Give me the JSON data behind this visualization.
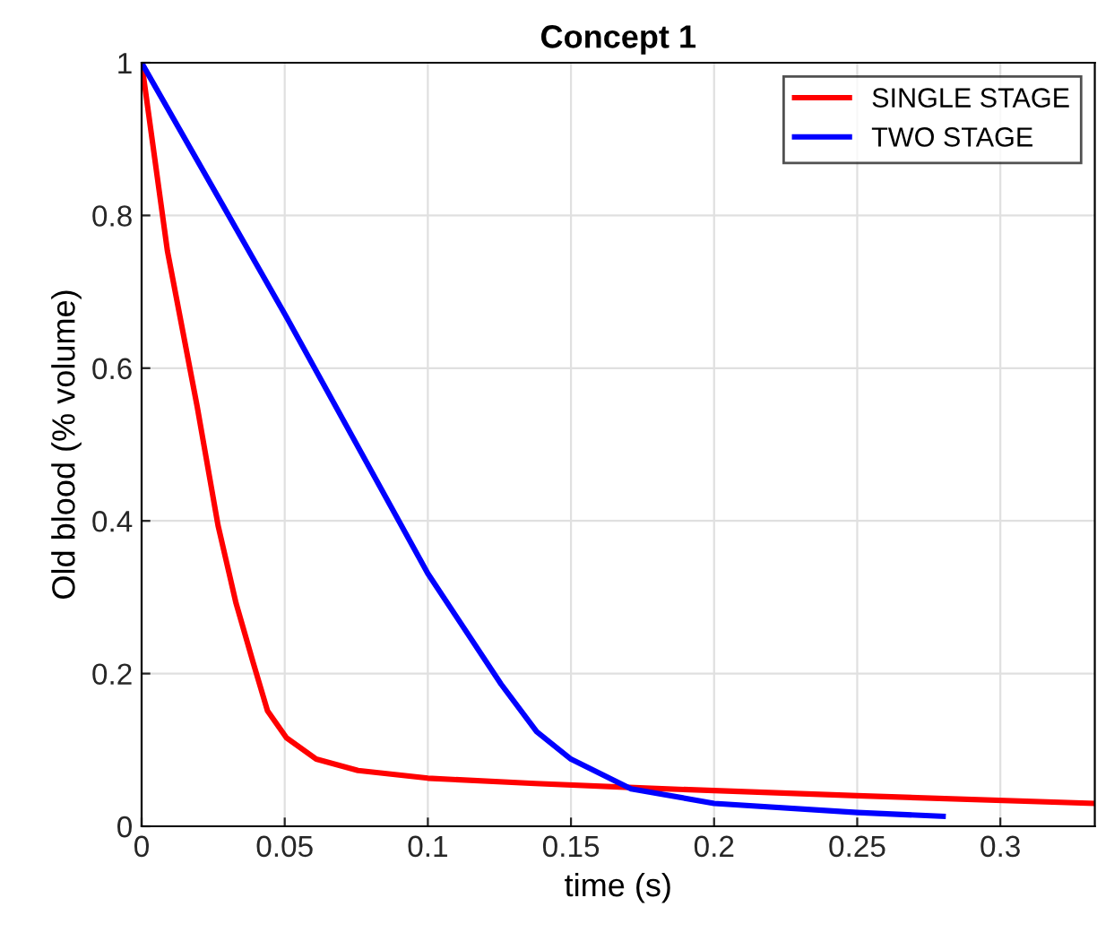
{
  "chart_data": {
    "type": "line",
    "title": "Concept 1",
    "xlabel": "time (s)",
    "ylabel": "Old blood (% volume)",
    "xlim": [
      0,
      0.333
    ],
    "ylim": [
      0,
      1
    ],
    "xticks": [
      0,
      0.05,
      0.1,
      0.15,
      0.2,
      0.25,
      0.3
    ],
    "yticks": [
      0,
      0.2,
      0.4,
      0.6,
      0.8,
      1
    ],
    "grid": true,
    "legend": "top right",
    "series": [
      {
        "name": "SINGLE STAGE",
        "color": "#ff0000",
        "x": [
          0,
          0.009,
          0.0194,
          0.0267,
          0.033,
          0.039,
          0.044,
          0.0506,
          0.061,
          0.0756,
          0.1,
          0.1375,
          0.176,
          0.25,
          0.333
        ],
        "values": [
          1,
          0.754,
          0.55,
          0.394,
          0.292,
          0.214,
          0.151,
          0.116,
          0.088,
          0.073,
          0.063,
          0.056,
          0.05,
          0.04,
          0.03
        ]
      },
      {
        "name": "TWO STAGE",
        "color": "#0000ff",
        "x": [
          0,
          0.0506,
          0.1,
          0.1256,
          0.138,
          0.15,
          0.171,
          0.2,
          0.25,
          0.28
        ],
        "values": [
          1,
          0.667,
          0.331,
          0.186,
          0.124,
          0.088,
          0.049,
          0.03,
          0.018,
          0.013
        ]
      }
    ]
  }
}
